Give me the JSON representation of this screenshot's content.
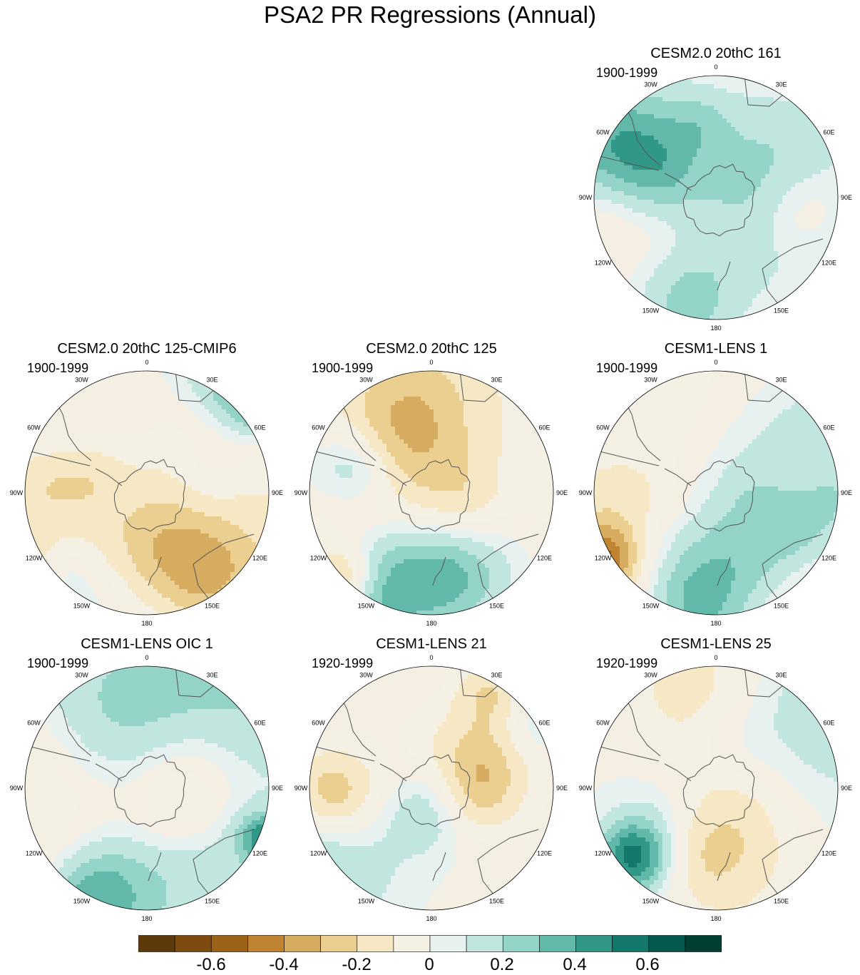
{
  "title": "PSA2 PR Regressions (Annual)",
  "panels": [
    {
      "id": "p1",
      "title": "CESM2.0 20thC 161",
      "years": "1900-1999"
    },
    {
      "id": "p2",
      "title": "CESM2.0 20thC 125-CMIP6",
      "years": "1900-1999"
    },
    {
      "id": "p3",
      "title": "CESM2.0 20thC 125",
      "years": "1900-1999"
    },
    {
      "id": "p4",
      "title": "CESM1-LENS 1",
      "years": "1900-1999"
    },
    {
      "id": "p5",
      "title": "CESM1-LENS OIC 1",
      "years": "1900-1999"
    },
    {
      "id": "p6",
      "title": "CESM1-LENS 21",
      "years": "1920-1999"
    },
    {
      "id": "p7",
      "title": "CESM1-LENS 25",
      "years": "1920-1999"
    }
  ],
  "longitude_labels": [
    "0",
    "30E",
    "60E",
    "90E",
    "120E",
    "150E",
    "180",
    "150W",
    "120W",
    "90W",
    "60W",
    "30W"
  ],
  "colorbar": {
    "colors": [
      "#5c3a0c",
      "#7d4b0f",
      "#9c6218",
      "#bf8331",
      "#d6ad60",
      "#ebcf91",
      "#f6e8c4",
      "#f4f0e4",
      "#e6f1f0",
      "#c0e6df",
      "#93d3c8",
      "#62b8a9",
      "#319887",
      "#12786a",
      "#04594e",
      "#003d33"
    ],
    "tick_labels": [
      "-0.6",
      "-0.4",
      "-0.2",
      "0",
      "0.2",
      "0.4",
      "0.6"
    ]
  }
}
